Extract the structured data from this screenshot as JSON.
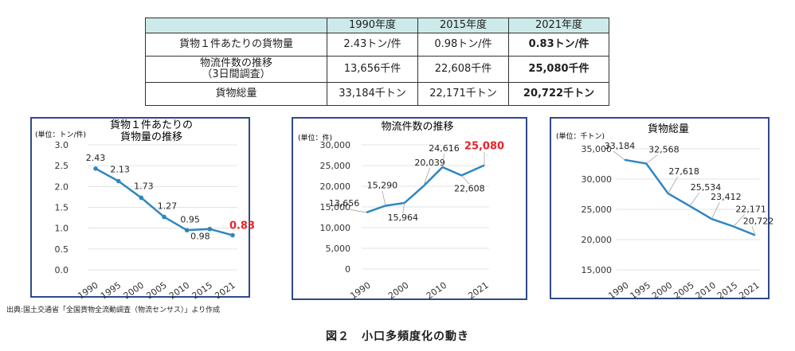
{
  "table": {
    "headers": [
      "",
      "1990年度",
      "2015年度",
      "2021年度"
    ],
    "rows": [
      {
        "label": "貨物１件あたりの貨物量",
        "label2": "",
        "values": [
          "2.43トン/件",
          "0.98トン/件",
          "0.83トン/件"
        ]
      },
      {
        "label": "物流件数の推移",
        "label2": "（3日間調査）",
        "values": [
          "13,656千件",
          "22,608千件",
          "25,080千件"
        ]
      },
      {
        "label": "貨物総量",
        "label2": "",
        "values": [
          "33,184千トン",
          "22,171千トン",
          "20,722千トン"
        ]
      }
    ]
  },
  "chart_data": [
    {
      "type": "line",
      "title": "貨物１件あたりの",
      "title2": "貨物量の推移",
      "unit": "(単位：トン/件)",
      "x": [
        "1990",
        "1995",
        "2000",
        "2005",
        "2010",
        "2015",
        "2021"
      ],
      "values": [
        2.43,
        2.13,
        1.73,
        1.27,
        0.95,
        0.98,
        0.83
      ],
      "value_labels": [
        "2.43",
        "2.13",
        "1.73",
        "1.27",
        "0.95",
        "0.98",
        "0.83"
      ],
      "y_ticks": [
        "3.0",
        "2.5",
        "2.0",
        "1.5",
        "1.0",
        "0.5",
        "0.0"
      ],
      "ylim": [
        0,
        3
      ],
      "markers": true,
      "highlight_last": true,
      "line_color": "#2e86c1",
      "highlight_color": "#e8232a"
    },
    {
      "type": "line",
      "title": "物流件数の推移",
      "unit": "(単位：件)",
      "x": [
        "1990",
        "2000",
        "2010",
        "2021"
      ],
      "points": [
        {
          "x": 1990,
          "y": 13656,
          "label": "13,656"
        },
        {
          "x": 1995,
          "y": 15290,
          "label": "15,290"
        },
        {
          "x": 2000,
          "y": 15964,
          "label": "15,964"
        },
        {
          "x": 2005,
          "y": 20039,
          "label": "20,039"
        },
        {
          "x": 2010,
          "y": 24616,
          "label": "24,616"
        },
        {
          "x": 2015,
          "y": 22608,
          "label": "22,608"
        },
        {
          "x": 2021,
          "y": 25080,
          "label": "25,080"
        }
      ],
      "y_ticks": [
        "30,000",
        "25,000",
        "20,000",
        "15,000",
        "10,000",
        "5,000",
        "0"
      ],
      "ylim": [
        0,
        30000
      ],
      "highlight_last": true,
      "line_color": "#2e86c1",
      "highlight_color": "#e8232a"
    },
    {
      "type": "line",
      "title": "貨物総量",
      "unit": "(単位：千トン)",
      "x": [
        "1990",
        "1995",
        "2000",
        "2005",
        "2010",
        "2015",
        "2021"
      ],
      "points": [
        {
          "x": 1990,
          "y": 33184,
          "label": "33,184"
        },
        {
          "x": 1995,
          "y": 32568,
          "label": "32,568"
        },
        {
          "x": 2000,
          "y": 27618,
          "label": "27,618"
        },
        {
          "x": 2005,
          "y": 25534,
          "label": "25,534"
        },
        {
          "x": 2010,
          "y": 23412,
          "label": "23,412"
        },
        {
          "x": 2015,
          "y": 22171,
          "label": "22,171"
        },
        {
          "x": 2021,
          "y": 20722,
          "label": "20,722"
        }
      ],
      "y_ticks": [
        "35,000",
        "30,000",
        "25,000",
        "20,000",
        "15,000"
      ],
      "ylim": [
        15000,
        35000
      ],
      "line_color": "#2e86c1"
    }
  ],
  "source": "出典:国土交通省「全国貨物全流動調査（物流センサス）」より作成",
  "caption": "図２　小口多頻度化の動き"
}
